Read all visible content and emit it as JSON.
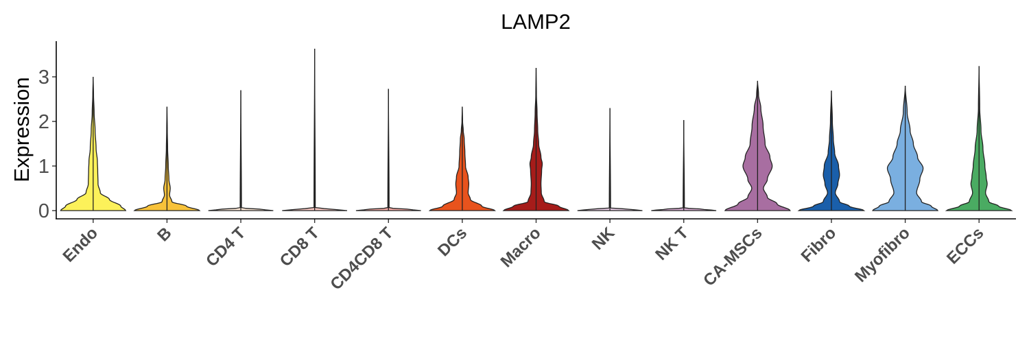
{
  "chart_data": {
    "type": "violin",
    "title": "LAMP2",
    "ylabel": "Expression",
    "xlabel": "",
    "ylim": [
      -0.15,
      3.8
    ],
    "yticks": [
      0,
      1,
      2,
      3
    ],
    "grid": false,
    "legend": "none",
    "categories": [
      "Endo",
      "B",
      "CD4 T",
      "CD8 T",
      "CD4CD8 T",
      "DCs",
      "Macro",
      "NK",
      "NK T",
      "CA-MSCs",
      "Fibro",
      "Myofibro",
      "ECCs"
    ],
    "colors": [
      "#FCF15A",
      "#F8C23A",
      "#FDE8D6",
      "#F8C6C0",
      "#F5A9A3",
      "#E8531D",
      "#A61C1A",
      "#E3C7DF",
      "#D4A8CD",
      "#A86EA1",
      "#1A5FAA",
      "#7AAFE0",
      "#4AAB62"
    ],
    "max_values": [
      3.0,
      2.33,
      2.7,
      3.63,
      2.73,
      2.33,
      3.2,
      2.3,
      2.03,
      2.91,
      2.69,
      2.8,
      3.24
    ],
    "density_profiles": [
      [
        [
          0,
          1.0
        ],
        [
          0.1,
          0.85
        ],
        [
          0.25,
          0.5
        ],
        [
          0.4,
          0.22
        ],
        [
          0.6,
          0.15
        ],
        [
          0.9,
          0.14
        ],
        [
          1.1,
          0.13
        ],
        [
          1.4,
          0.09
        ],
        [
          1.8,
          0.06
        ],
        [
          2.2,
          0.03
        ],
        [
          2.6,
          0.012
        ],
        [
          3.0,
          0.0
        ]
      ],
      [
        [
          0,
          1.0
        ],
        [
          0.1,
          0.6
        ],
        [
          0.2,
          0.15
        ],
        [
          0.35,
          0.08
        ],
        [
          0.5,
          0.1
        ],
        [
          0.7,
          0.06
        ],
        [
          1.0,
          0.04
        ],
        [
          1.4,
          0.02
        ],
        [
          1.8,
          0.01
        ],
        [
          2.33,
          0.0
        ]
      ],
      [
        [
          0,
          1.0
        ],
        [
          0.03,
          0.6
        ],
        [
          0.06,
          0.02
        ],
        [
          2.7,
          0.0
        ]
      ],
      [
        [
          0,
          1.0
        ],
        [
          0.03,
          0.6
        ],
        [
          0.06,
          0.02
        ],
        [
          3.63,
          0.0
        ]
      ],
      [
        [
          0,
          1.0
        ],
        [
          0.03,
          0.6
        ],
        [
          0.06,
          0.02
        ],
        [
          2.73,
          0.0
        ]
      ],
      [
        [
          0,
          1.0
        ],
        [
          0.1,
          0.6
        ],
        [
          0.25,
          0.25
        ],
        [
          0.4,
          0.18
        ],
        [
          0.6,
          0.2
        ],
        [
          0.75,
          0.18
        ],
        [
          1.0,
          0.1
        ],
        [
          1.3,
          0.08
        ],
        [
          1.6,
          0.06
        ],
        [
          1.8,
          0.03
        ],
        [
          2.0,
          0.01
        ],
        [
          2.33,
          0.0
        ]
      ],
      [
        [
          0,
          1.0
        ],
        [
          0.1,
          0.7
        ],
        [
          0.2,
          0.25
        ],
        [
          0.4,
          0.16
        ],
        [
          0.6,
          0.15
        ],
        [
          0.9,
          0.17
        ],
        [
          1.05,
          0.19
        ],
        [
          1.2,
          0.15
        ],
        [
          1.5,
          0.08
        ],
        [
          1.8,
          0.05
        ],
        [
          2.2,
          0.03
        ],
        [
          2.6,
          0.01
        ],
        [
          3.2,
          0.0
        ]
      ],
      [
        [
          0,
          1.0
        ],
        [
          0.03,
          0.6
        ],
        [
          0.06,
          0.02
        ],
        [
          2.3,
          0.0
        ]
      ],
      [
        [
          0,
          1.0
        ],
        [
          0.03,
          0.6
        ],
        [
          0.06,
          0.02
        ],
        [
          2.03,
          0.0
        ]
      ],
      [
        [
          0,
          1.0
        ],
        [
          0.15,
          0.6
        ],
        [
          0.3,
          0.3
        ],
        [
          0.5,
          0.18
        ],
        [
          0.7,
          0.3
        ],
        [
          1.0,
          0.45
        ],
        [
          1.2,
          0.38
        ],
        [
          1.5,
          0.23
        ],
        [
          1.9,
          0.17
        ],
        [
          2.3,
          0.1
        ],
        [
          2.6,
          0.03
        ],
        [
          2.91,
          0.0
        ]
      ],
      [
        [
          0,
          1.0
        ],
        [
          0.1,
          0.55
        ],
        [
          0.2,
          0.25
        ],
        [
          0.4,
          0.12
        ],
        [
          0.6,
          0.2
        ],
        [
          0.8,
          0.25
        ],
        [
          1.0,
          0.22
        ],
        [
          1.3,
          0.1
        ],
        [
          1.6,
          0.06
        ],
        [
          2.0,
          0.03
        ],
        [
          2.69,
          0.0
        ]
      ],
      [
        [
          0,
          1.0
        ],
        [
          0.1,
          0.8
        ],
        [
          0.2,
          0.5
        ],
        [
          0.4,
          0.35
        ],
        [
          0.7,
          0.45
        ],
        [
          0.95,
          0.55
        ],
        [
          1.2,
          0.38
        ],
        [
          1.5,
          0.25
        ],
        [
          1.8,
          0.15
        ],
        [
          2.2,
          0.06
        ],
        [
          2.8,
          0.0
        ]
      ],
      [
        [
          0,
          1.0
        ],
        [
          0.1,
          0.6
        ],
        [
          0.2,
          0.3
        ],
        [
          0.4,
          0.2
        ],
        [
          0.6,
          0.25
        ],
        [
          0.75,
          0.22
        ],
        [
          1.0,
          0.18
        ],
        [
          1.4,
          0.12
        ],
        [
          1.8,
          0.06
        ],
        [
          2.3,
          0.02
        ],
        [
          3.24,
          0.0
        ]
      ]
    ]
  }
}
